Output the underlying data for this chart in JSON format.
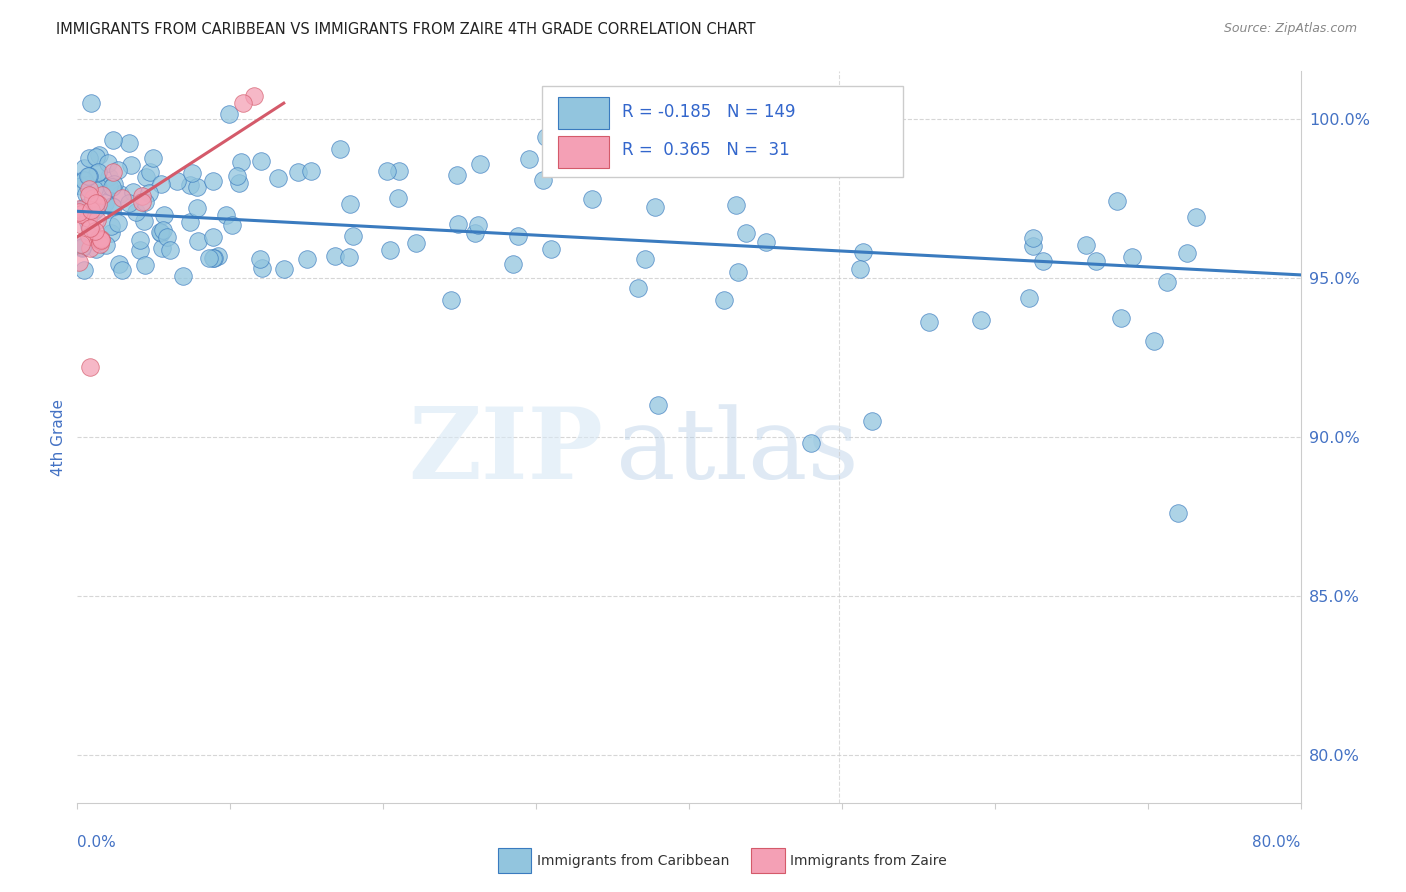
{
  "title": "IMMIGRANTS FROM CARIBBEAN VS IMMIGRANTS FROM ZAIRE 4TH GRADE CORRELATION CHART",
  "source": "Source: ZipAtlas.com",
  "ylabel": "4th Grade",
  "ytick_labels": [
    "80.0%",
    "85.0%",
    "90.0%",
    "95.0%",
    "100.0%"
  ],
  "ytick_values": [
    0.8,
    0.85,
    0.9,
    0.95,
    1.0
  ],
  "xlim": [
    0.0,
    0.8
  ],
  "ylim": [
    0.785,
    1.015
  ],
  "legend_blue_R": "-0.185",
  "legend_blue_N": "149",
  "legend_pink_R": "0.365",
  "legend_pink_N": "31",
  "blue_color": "#92c5de",
  "pink_color": "#f4a0b5",
  "blue_line_color": "#3a7bbf",
  "pink_line_color": "#d45a6a",
  "watermark_zip": "ZIP",
  "watermark_atlas": "atlas",
  "seed": 42,
  "blue_trend_x0": 0.0,
  "blue_trend_x1": 0.8,
  "blue_trend_y0": 0.971,
  "blue_trend_y1": 0.951,
  "pink_trend_x0": 0.0,
  "pink_trend_x1": 0.135,
  "pink_trend_y0": 0.963,
  "pink_trend_y1": 1.005
}
